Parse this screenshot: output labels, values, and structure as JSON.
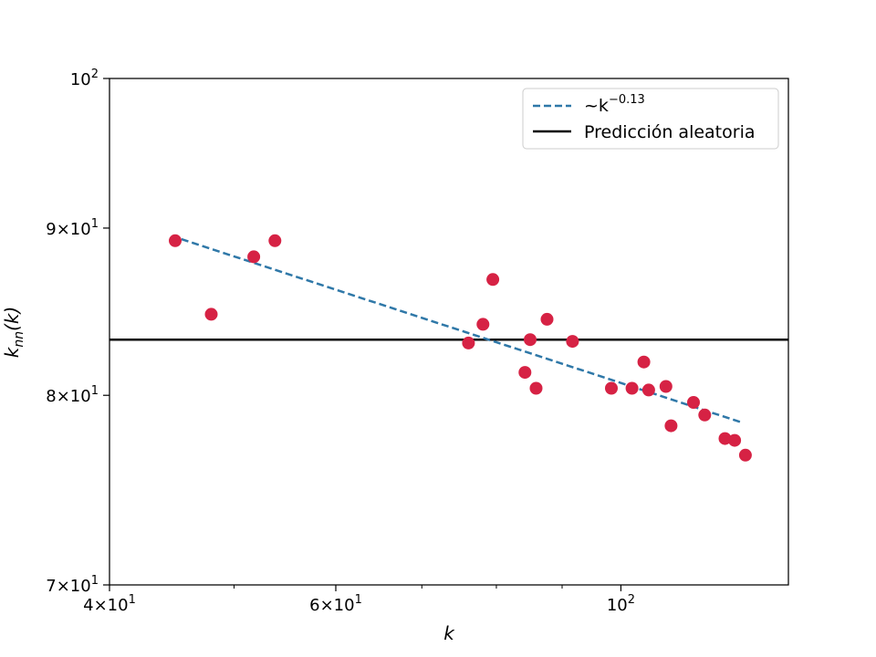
{
  "chart_data": {
    "type": "scatter",
    "xscale": "log",
    "yscale": "log",
    "xlim": [
      40,
      135
    ],
    "ylim": [
      70,
      100
    ],
    "xlabel": "k",
    "ylabel": "k_nn(k)",
    "x_ticks": [
      {
        "value": 40,
        "mantissa": "4",
        "base": "10",
        "exp": "1"
      },
      {
        "value": 60,
        "mantissa": "6",
        "base": "10",
        "exp": "1"
      },
      {
        "value": 100,
        "mantissa": "",
        "base": "10",
        "exp": "2"
      }
    ],
    "x_minor_ticks": [
      50,
      70,
      80,
      90
    ],
    "y_ticks": [
      {
        "value": 70,
        "mantissa": "7",
        "base": "10",
        "exp": "1"
      },
      {
        "value": 80,
        "mantissa": "8",
        "base": "10",
        "exp": "1"
      },
      {
        "value": 90,
        "mantissa": "9",
        "base": "10",
        "exp": "1"
      },
      {
        "value": 100,
        "mantissa": "",
        "base": "10",
        "exp": "2"
      }
    ],
    "series": [
      {
        "name": "points",
        "kind": "scatter",
        "color": "#d62244",
        "points": [
          [
            45.0,
            89.2
          ],
          [
            48.0,
            84.7
          ],
          [
            51.8,
            88.2
          ],
          [
            53.8,
            89.2
          ],
          [
            76.1,
            83.0
          ],
          [
            78.1,
            84.1
          ],
          [
            79.5,
            86.8
          ],
          [
            84.2,
            81.3
          ],
          [
            85.0,
            83.2
          ],
          [
            85.9,
            80.4
          ],
          [
            87.6,
            84.4
          ],
          [
            91.7,
            83.1
          ],
          [
            98.3,
            80.4
          ],
          [
            102.0,
            80.4
          ],
          [
            104.2,
            81.9
          ],
          [
            105.1,
            80.3
          ],
          [
            108.4,
            80.5
          ],
          [
            109.4,
            78.3
          ],
          [
            113.9,
            79.6
          ],
          [
            116.2,
            78.9
          ],
          [
            120.5,
            77.6
          ],
          [
            122.6,
            77.5
          ],
          [
            125.0,
            76.7
          ]
        ]
      },
      {
        "name": "~k^-0.13",
        "kind": "dashed-line",
        "color": "#2f78a8",
        "points": [
          [
            45.5,
            89.3
          ],
          [
            124.0,
            78.5
          ]
        ]
      },
      {
        "name": "Predicción aleatoria",
        "kind": "hline",
        "color": "#000000",
        "y": 83.2
      }
    ],
    "legend": {
      "position": "top-right",
      "entries": [
        {
          "prefix": "~k",
          "superscript": "−0.13",
          "style": "dashed",
          "color": "#2f78a8"
        },
        {
          "label": "Predicción aleatoria",
          "style": "solid",
          "color": "#000000"
        }
      ]
    }
  }
}
